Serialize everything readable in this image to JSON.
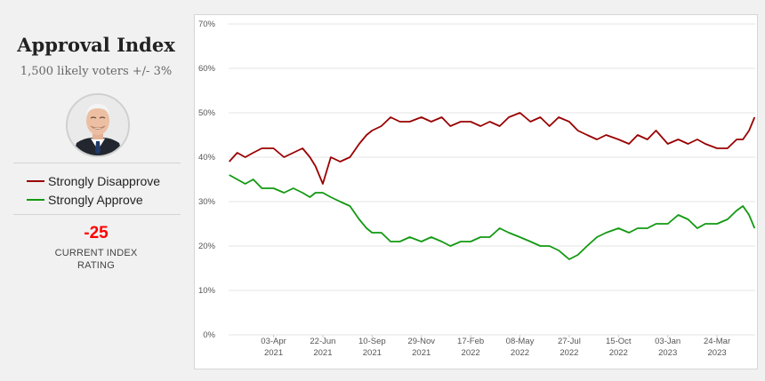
{
  "panel": {
    "title": "Approval Index",
    "subtitle": "1,500 likely voters +/- 3%",
    "avatar_icon": "president-portrait",
    "index_value": "-25",
    "index_label": "CURRENT INDEX RATING"
  },
  "colors": {
    "disapprove": "#990000",
    "approve": "#119911",
    "index_value": "#ff0000"
  },
  "chart_data": {
    "type": "line",
    "title": "",
    "xlabel": "",
    "ylabel": "",
    "ylim": [
      0,
      70
    ],
    "yticks": [
      "0%",
      "10%",
      "20%",
      "30%",
      "40%",
      "50%",
      "60%",
      "70%"
    ],
    "x_range": [
      "2021-01-20",
      "2023-05-25"
    ],
    "xticks": [
      {
        "date": "2021-04-03",
        "line1": "03-Apr",
        "line2": "2021"
      },
      {
        "date": "2021-06-22",
        "line1": "22-Jun",
        "line2": "2021"
      },
      {
        "date": "2021-09-10",
        "line1": "10-Sep",
        "line2": "2021"
      },
      {
        "date": "2021-11-29",
        "line1": "29-Nov",
        "line2": "2021"
      },
      {
        "date": "2022-02-17",
        "line1": "17-Feb",
        "line2": "2022"
      },
      {
        "date": "2022-05-08",
        "line1": "08-May",
        "line2": "2022"
      },
      {
        "date": "2022-07-27",
        "line1": "27-Jul",
        "line2": "2022"
      },
      {
        "date": "2022-10-15",
        "line1": "15-Oct",
        "line2": "2022"
      },
      {
        "date": "2023-01-03",
        "line1": "03-Jan",
        "line2": "2023"
      },
      {
        "date": "2023-03-24",
        "line1": "24-Mar",
        "line2": "2023"
      }
    ],
    "grid": true,
    "series": [
      {
        "name": "Strongly Disapprove",
        "color": "#990000",
        "x": [
          "2021-01-21",
          "2021-02-03",
          "2021-02-16",
          "2021-03-01",
          "2021-03-15",
          "2021-04-03",
          "2021-04-20",
          "2021-05-05",
          "2021-05-20",
          "2021-06-01",
          "2021-06-10",
          "2021-06-22",
          "2021-07-05",
          "2021-07-20",
          "2021-08-05",
          "2021-08-20",
          "2021-09-01",
          "2021-09-10",
          "2021-09-25",
          "2021-10-10",
          "2021-10-25",
          "2021-11-10",
          "2021-11-29",
          "2021-12-15",
          "2022-01-01",
          "2022-01-15",
          "2022-02-01",
          "2022-02-17",
          "2022-03-05",
          "2022-03-20",
          "2022-04-05",
          "2022-04-20",
          "2022-05-08",
          "2022-05-25",
          "2022-06-10",
          "2022-06-25",
          "2022-07-10",
          "2022-07-27",
          "2022-08-10",
          "2022-08-25",
          "2022-09-10",
          "2022-09-25",
          "2022-10-15",
          "2022-11-01",
          "2022-11-15",
          "2022-12-01",
          "2022-12-15",
          "2023-01-03",
          "2023-01-20",
          "2023-02-05",
          "2023-02-20",
          "2023-03-05",
          "2023-03-24",
          "2023-04-10",
          "2023-04-25",
          "2023-05-05",
          "2023-05-15",
          "2023-05-24"
        ],
        "values": [
          39,
          41,
          40,
          41,
          42,
          42,
          40,
          41,
          42,
          40,
          38,
          34,
          40,
          39,
          40,
          43,
          45,
          46,
          47,
          49,
          48,
          48,
          49,
          48,
          49,
          47,
          48,
          48,
          47,
          48,
          47,
          49,
          50,
          48,
          49,
          47,
          49,
          48,
          46,
          45,
          44,
          45,
          44,
          43,
          45,
          44,
          46,
          43,
          44,
          43,
          44,
          43,
          42,
          42,
          44,
          44,
          46,
          49
        ]
      },
      {
        "name": "Strongly Approve",
        "color": "#119911",
        "x": [
          "2021-01-21",
          "2021-02-03",
          "2021-02-16",
          "2021-03-01",
          "2021-03-15",
          "2021-04-03",
          "2021-04-20",
          "2021-05-05",
          "2021-05-20",
          "2021-06-01",
          "2021-06-10",
          "2021-06-22",
          "2021-07-05",
          "2021-07-20",
          "2021-08-05",
          "2021-08-20",
          "2021-09-01",
          "2021-09-10",
          "2021-09-25",
          "2021-10-10",
          "2021-10-25",
          "2021-11-10",
          "2021-11-29",
          "2021-12-15",
          "2022-01-01",
          "2022-01-15",
          "2022-02-01",
          "2022-02-17",
          "2022-03-05",
          "2022-03-20",
          "2022-04-05",
          "2022-04-20",
          "2022-05-08",
          "2022-05-25",
          "2022-06-10",
          "2022-06-25",
          "2022-07-10",
          "2022-07-27",
          "2022-08-10",
          "2022-08-25",
          "2022-09-10",
          "2022-09-25",
          "2022-10-15",
          "2022-11-01",
          "2022-11-15",
          "2022-12-01",
          "2022-12-15",
          "2023-01-03",
          "2023-01-20",
          "2023-02-05",
          "2023-02-20",
          "2023-03-05",
          "2023-03-24",
          "2023-04-10",
          "2023-04-25",
          "2023-05-05",
          "2023-05-15",
          "2023-05-24"
        ],
        "values": [
          36,
          35,
          34,
          35,
          33,
          33,
          32,
          33,
          32,
          31,
          32,
          32,
          31,
          30,
          29,
          26,
          24,
          23,
          23,
          21,
          21,
          22,
          21,
          22,
          21,
          20,
          21,
          21,
          22,
          22,
          24,
          23,
          22,
          21,
          20,
          20,
          19,
          17,
          18,
          20,
          22,
          23,
          24,
          23,
          24,
          24,
          25,
          25,
          27,
          26,
          24,
          25,
          25,
          26,
          28,
          29,
          27,
          24
        ]
      }
    ]
  }
}
